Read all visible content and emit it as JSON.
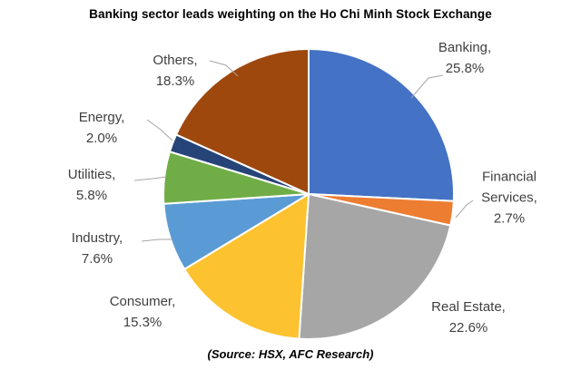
{
  "title": "Banking sector leads weighting on the Ho Chi Minh Stock Exchange",
  "source": "(Source: HSX, AFC Research)",
  "chart_data": {
    "type": "pie",
    "title": "Banking sector leads weighting on the Ho Chi Minh Stock Exchange",
    "source_note": "(Source: HSX, AFC Research)",
    "start_angle_deg": 0,
    "direction": "clockwise",
    "legend": "none (data labels with leader lines)",
    "categories": [
      "Banking",
      "Financial Services",
      "Real Estate",
      "Consumer",
      "Industry",
      "Utilities",
      "Energy",
      "Others"
    ],
    "values": [
      25.8,
      2.7,
      22.6,
      15.3,
      7.6,
      5.8,
      2.0,
      18.3
    ],
    "colors": [
      "#4472C4",
      "#ED7D31",
      "#A6A6A6",
      "#FDC22F",
      "#5B9BD5",
      "#70AD47",
      "#264478",
      "#9E480E"
    ],
    "label_text_color": "#404040",
    "leader_line_color": "#A6A6A6",
    "slices": [
      {
        "name": "Banking",
        "value": 25.8,
        "color": "#4472C4",
        "label_lines": [
          "Banking,",
          "25.8%"
        ]
      },
      {
        "name": "Financial Services",
        "value": 2.7,
        "color": "#ED7D31",
        "label_lines": [
          "Financial",
          "Services,",
          "2.7%"
        ]
      },
      {
        "name": "Real Estate",
        "value": 22.6,
        "color": "#A6A6A6",
        "label_lines": [
          "Real Estate,",
          "22.6%"
        ]
      },
      {
        "name": "Consumer",
        "value": 15.3,
        "color": "#FDC22F",
        "label_lines": [
          "Consumer,",
          "15.3%"
        ]
      },
      {
        "name": "Industry",
        "value": 7.6,
        "color": "#5B9BD5",
        "label_lines": [
          "Industry,",
          "7.6%"
        ]
      },
      {
        "name": "Utilities",
        "value": 5.8,
        "color": "#70AD47",
        "label_lines": [
          "Utilities,",
          "5.8%"
        ]
      },
      {
        "name": "Energy",
        "value": 2.0,
        "color": "#264478",
        "label_lines": [
          "Energy,",
          "2.0%"
        ]
      },
      {
        "name": "Others",
        "value": 18.3,
        "color": "#9E480E",
        "label_lines": [
          "Others,",
          "18.3%"
        ]
      }
    ]
  }
}
